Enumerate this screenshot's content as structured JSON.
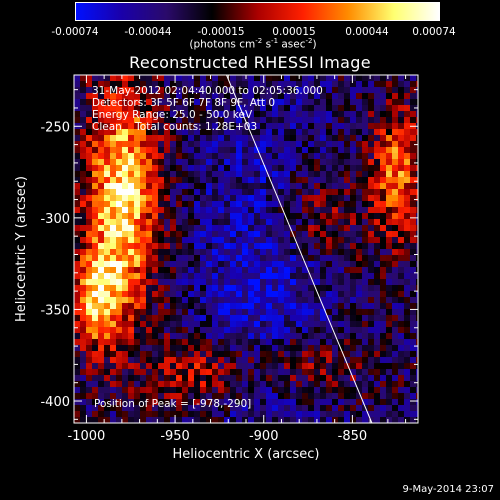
{
  "colorbar": {
    "ticks": [
      "-0.00074",
      "-0.00044",
      "-0.00015",
      "0.00015",
      "0.00044",
      "0.00074"
    ],
    "unit": {
      "photons": "(photons cm",
      "p1": "-2",
      "s": " s",
      "p2": "-1",
      "asec": " asec",
      "p3": "-2",
      "close": ")"
    }
  },
  "chart_data": {
    "type": "heatmap",
    "title": "Reconstructed RHESSI Image",
    "xlabel": "Heliocentric X (arcsec)",
    "ylabel": "Heliocentric Y (arcsec)",
    "xlim": [
      -1007,
      -813
    ],
    "ylim": [
      -412,
      -222
    ],
    "x_ticks": [
      -1000,
      -950,
      -900,
      -850
    ],
    "y_ticks": [
      -400,
      -350,
      -300,
      -250
    ],
    "x_tick_labels": [
      "-1000",
      "-950",
      "-900",
      "-850"
    ],
    "y_tick_labels": [
      "-400",
      "-350",
      "-300",
      "-250"
    ],
    "limb_line": [
      [
        -921,
        -222
      ],
      [
        -839,
        -412
      ]
    ],
    "peak": [
      -978,
      -290
    ],
    "colormap": [
      "#0010ff",
      "#1a00aa",
      "#2a0a6a",
      "#000000",
      "#aa0000",
      "#ff2000",
      "#ff8c00",
      "#ffff70",
      "#ffffff"
    ],
    "annotations": [
      "31-May-2012 02:04:40.000 to 02:05:36.000",
      "Detectors: 3F 5F 6F 7F 8F 9F, Att 0",
      "Energy Range: 25.0 - 50.0 keV",
      "Clean    Total counts: 1.28E+03"
    ],
    "peak_label": "Position of Peak = [-978,-290]"
  },
  "timestamp": "9-May-2014 23:07"
}
